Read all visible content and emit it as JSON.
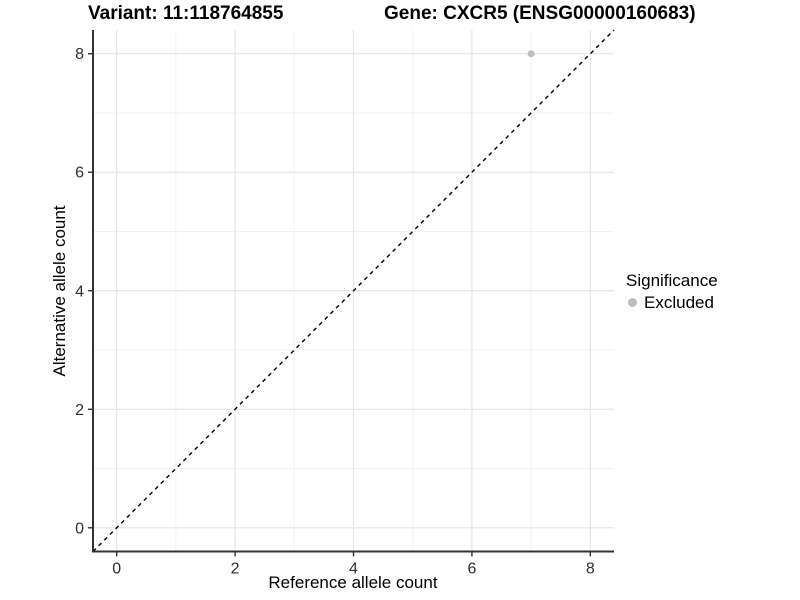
{
  "chart_data": {
    "type": "scatter",
    "title_left": "Variant: 11:118764855",
    "title_right": "Gene: CXCR5 (ENSG00000160683)",
    "xlabel": "Reference allele count",
    "ylabel": "Alternative allele count",
    "xlim": [
      -0.4,
      8.4
    ],
    "ylim": [
      -0.4,
      8.4
    ],
    "xticks": [
      0,
      2,
      4,
      6,
      8
    ],
    "yticks": [
      0,
      2,
      4,
      6,
      8
    ],
    "minor_xticks": [
      1,
      3,
      5,
      7
    ],
    "minor_yticks": [
      1,
      3,
      5,
      7
    ],
    "grid": "major+minor",
    "reference_line": {
      "type": "identity",
      "slope": 1,
      "intercept": 0,
      "linetype": "dashed",
      "color": "#000000"
    },
    "series": [
      {
        "name": "Excluded",
        "marker": "circle",
        "color": "#bdbdbd",
        "points": [
          {
            "x": 7,
            "y": 8
          }
        ]
      }
    ],
    "legend": {
      "title": "Significance",
      "position": "right",
      "entries": [
        {
          "label": "Excluded",
          "color": "#bdbdbd",
          "marker": "circle"
        }
      ]
    },
    "colors": {
      "point": "#bdbdbd",
      "grid_major": "#e4e4e4",
      "grid_minor": "#f1f1f1",
      "axis_line": "#333333",
      "tick_label": "#303030",
      "background": "#ffffff"
    }
  }
}
